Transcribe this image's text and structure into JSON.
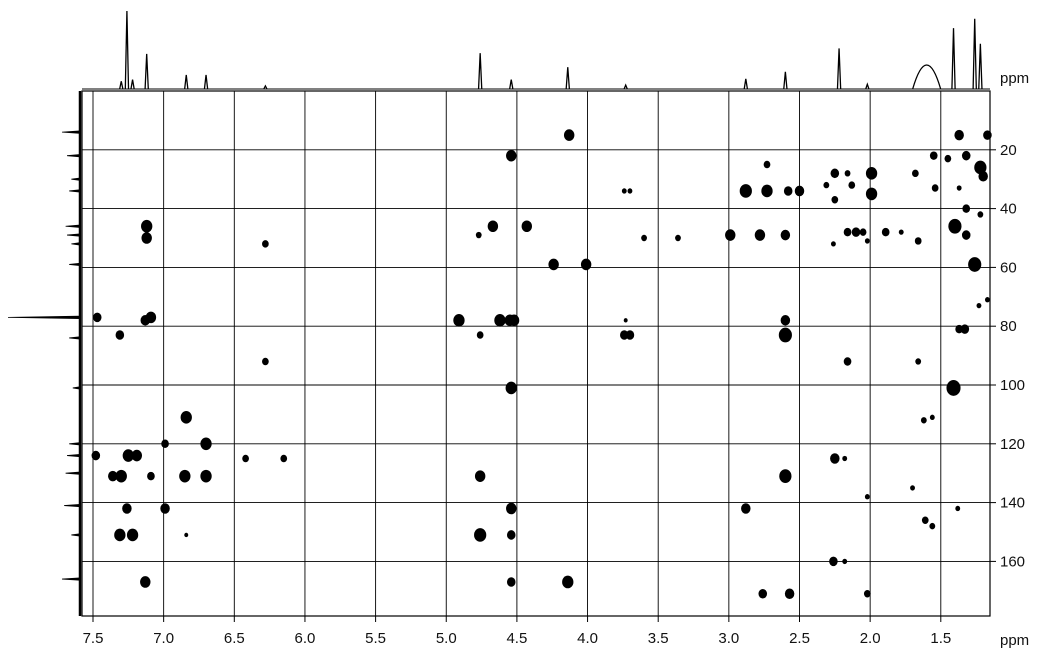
{
  "chart_data": {
    "type": "heatmap",
    "subtype": "2D NMR correlation (HSQC/HMBC) contour plot",
    "x_unit": "ppm",
    "y_unit": "ppm",
    "xlim": [
      7.55,
      1.15
    ],
    "ylim": [
      2,
      178
    ],
    "x_reversed": true,
    "grid": true,
    "x_ticks": [
      "7.5",
      "7.0",
      "6.5",
      "6.0",
      "5.5",
      "5.0",
      "4.5",
      "4.0",
      "3.5",
      "3.0",
      "2.5",
      "2.0",
      "1.5"
    ],
    "x_tick_values": [
      7.5,
      7.0,
      6.5,
      6.0,
      5.5,
      5.0,
      4.5,
      4.0,
      3.5,
      3.0,
      2.5,
      2.0,
      1.5
    ],
    "y_ticks": [
      "20",
      "40",
      "60",
      "80",
      "100",
      "120",
      "140",
      "160"
    ],
    "y_tick_values": [
      20,
      40,
      60,
      80,
      100,
      120,
      140,
      160
    ],
    "grid_x": [
      7.5,
      7.0,
      6.5,
      6.0,
      5.5,
      5.0,
      4.5,
      4.0,
      3.5,
      3.0,
      2.5,
      2.0,
      1.5
    ],
    "grid_y": [
      20,
      40,
      60,
      80,
      100,
      120,
      140,
      160
    ],
    "x_axis_label": "ppm",
    "y_axis_label": "ppm",
    "projection_1h": [
      {
        "x": 7.26,
        "h": 1.0
      },
      {
        "x": 7.22,
        "h": 0.12
      },
      {
        "x": 7.3,
        "h": 0.1
      },
      {
        "x": 7.12,
        "h": 0.45
      },
      {
        "x": 6.84,
        "h": 0.18
      },
      {
        "x": 6.7,
        "h": 0.18
      },
      {
        "x": 6.28,
        "h": 0.04
      },
      {
        "x": 4.76,
        "h": 0.46
      },
      {
        "x": 4.54,
        "h": 0.12
      },
      {
        "x": 4.14,
        "h": 0.28
      },
      {
        "x": 3.73,
        "h": 0.05
      },
      {
        "x": 2.88,
        "h": 0.13
      },
      {
        "x": 2.6,
        "h": 0.22
      },
      {
        "x": 2.22,
        "h": 0.52
      },
      {
        "x": 2.02,
        "h": 0.06
      },
      {
        "x": 1.6,
        "h": 0.28
      },
      {
        "x": 1.41,
        "h": 0.78
      },
      {
        "x": 1.26,
        "h": 0.9
      },
      {
        "x": 1.22,
        "h": 0.58
      }
    ],
    "projection_13c": [
      {
        "y": 14,
        "w": 0.25
      },
      {
        "y": 22,
        "w": 0.18
      },
      {
        "y": 30,
        "w": 0.12
      },
      {
        "y": 34,
        "w": 0.15
      },
      {
        "y": 46,
        "w": 0.2
      },
      {
        "y": 49,
        "w": 0.18
      },
      {
        "y": 52,
        "w": 0.12
      },
      {
        "y": 59,
        "w": 0.15
      },
      {
        "y": 77,
        "w": 1.0
      },
      {
        "y": 84,
        "w": 0.15
      },
      {
        "y": 101,
        "w": 0.1
      },
      {
        "y": 120,
        "w": 0.15
      },
      {
        "y": 124,
        "w": 0.18
      },
      {
        "y": 130,
        "w": 0.2
      },
      {
        "y": 141,
        "w": 0.22
      },
      {
        "y": 151,
        "w": 0.12
      },
      {
        "y": 166,
        "w": 0.25
      }
    ],
    "peaks": [
      {
        "x": 4.13,
        "y": 15,
        "s": 1.0
      },
      {
        "x": 1.37,
        "y": 15,
        "s": 0.9
      },
      {
        "x": 1.17,
        "y": 15,
        "s": 0.8
      },
      {
        "x": 4.54,
        "y": 22,
        "s": 1.0
      },
      {
        "x": 1.55,
        "y": 22,
        "s": 0.7
      },
      {
        "x": 1.45,
        "y": 23,
        "s": 0.6
      },
      {
        "x": 1.32,
        "y": 22,
        "s": 0.8
      },
      {
        "x": 1.22,
        "y": 26,
        "s": 1.2
      },
      {
        "x": 2.73,
        "y": 25,
        "s": 0.6
      },
      {
        "x": 2.25,
        "y": 28,
        "s": 0.8
      },
      {
        "x": 2.16,
        "y": 28,
        "s": 0.5
      },
      {
        "x": 1.99,
        "y": 28,
        "s": 1.1
      },
      {
        "x": 1.68,
        "y": 28,
        "s": 0.6
      },
      {
        "x": 1.2,
        "y": 29,
        "s": 0.9
      },
      {
        "x": 3.74,
        "y": 34,
        "s": 0.4
      },
      {
        "x": 3.7,
        "y": 34,
        "s": 0.4
      },
      {
        "x": 2.88,
        "y": 34,
        "s": 1.2
      },
      {
        "x": 2.73,
        "y": 34,
        "s": 1.1
      },
      {
        "x": 2.58,
        "y": 34,
        "s": 0.8
      },
      {
        "x": 2.5,
        "y": 34,
        "s": 0.9
      },
      {
        "x": 2.31,
        "y": 32,
        "s": 0.5
      },
      {
        "x": 2.25,
        "y": 37,
        "s": 0.6
      },
      {
        "x": 2.13,
        "y": 32,
        "s": 0.6
      },
      {
        "x": 1.99,
        "y": 35,
        "s": 1.1
      },
      {
        "x": 1.54,
        "y": 33,
        "s": 0.6
      },
      {
        "x": 1.37,
        "y": 33,
        "s": 0.4
      },
      {
        "x": 1.32,
        "y": 40,
        "s": 0.7
      },
      {
        "x": 1.22,
        "y": 42,
        "s": 0.5
      },
      {
        "x": 7.12,
        "y": 46,
        "s": 1.1
      },
      {
        "x": 7.12,
        "y": 50,
        "s": 1.0
      },
      {
        "x": 4.67,
        "y": 46,
        "s": 1.0
      },
      {
        "x": 4.43,
        "y": 46,
        "s": 1.0
      },
      {
        "x": 4.77,
        "y": 49,
        "s": 0.5
      },
      {
        "x": 3.6,
        "y": 50,
        "s": 0.5
      },
      {
        "x": 3.36,
        "y": 50,
        "s": 0.5
      },
      {
        "x": 2.99,
        "y": 49,
        "s": 1.0
      },
      {
        "x": 2.78,
        "y": 49,
        "s": 1.0
      },
      {
        "x": 2.6,
        "y": 49,
        "s": 0.9
      },
      {
        "x": 2.26,
        "y": 52,
        "s": 0.4
      },
      {
        "x": 2.16,
        "y": 48,
        "s": 0.7
      },
      {
        "x": 2.1,
        "y": 48,
        "s": 0.8
      },
      {
        "x": 2.05,
        "y": 48,
        "s": 0.6
      },
      {
        "x": 2.02,
        "y": 51,
        "s": 0.4
      },
      {
        "x": 1.89,
        "y": 48,
        "s": 0.7
      },
      {
        "x": 1.78,
        "y": 48,
        "s": 0.4
      },
      {
        "x": 1.66,
        "y": 51,
        "s": 0.6
      },
      {
        "x": 1.4,
        "y": 46,
        "s": 1.3
      },
      {
        "x": 1.32,
        "y": 49,
        "s": 0.8
      },
      {
        "x": 6.28,
        "y": 52,
        "s": 0.6
      },
      {
        "x": 4.24,
        "y": 59,
        "s": 1.0
      },
      {
        "x": 4.01,
        "y": 59,
        "s": 1.0
      },
      {
        "x": 1.26,
        "y": 59,
        "s": 1.3
      },
      {
        "x": 1.23,
        "y": 73,
        "s": 0.4
      },
      {
        "x": 1.17,
        "y": 71,
        "s": 0.4
      },
      {
        "x": 7.47,
        "y": 77,
        "s": 0.8
      },
      {
        "x": 7.13,
        "y": 78,
        "s": 0.9
      },
      {
        "x": 7.09,
        "y": 77,
        "s": 1.0
      },
      {
        "x": 4.91,
        "y": 78,
        "s": 1.1
      },
      {
        "x": 4.62,
        "y": 78,
        "s": 1.1
      },
      {
        "x": 4.55,
        "y": 78,
        "s": 1.0
      },
      {
        "x": 4.52,
        "y": 78,
        "s": 1.0
      },
      {
        "x": 3.73,
        "y": 78,
        "s": 0.3
      },
      {
        "x": 2.6,
        "y": 78,
        "s": 0.9
      },
      {
        "x": 1.37,
        "y": 81,
        "s": 0.7
      },
      {
        "x": 1.33,
        "y": 81,
        "s": 0.8
      },
      {
        "x": 7.31,
        "y": 83,
        "s": 0.8
      },
      {
        "x": 4.76,
        "y": 83,
        "s": 0.6
      },
      {
        "x": 3.74,
        "y": 83,
        "s": 0.8
      },
      {
        "x": 3.7,
        "y": 83,
        "s": 0.8
      },
      {
        "x": 2.6,
        "y": 83,
        "s": 1.3
      },
      {
        "x": 6.28,
        "y": 92,
        "s": 0.6
      },
      {
        "x": 2.16,
        "y": 92,
        "s": 0.7
      },
      {
        "x": 1.66,
        "y": 92,
        "s": 0.5
      },
      {
        "x": 4.54,
        "y": 101,
        "s": 1.1
      },
      {
        "x": 1.41,
        "y": 101,
        "s": 1.4
      },
      {
        "x": 6.84,
        "y": 111,
        "s": 1.1
      },
      {
        "x": 1.62,
        "y": 112,
        "s": 0.5
      },
      {
        "x": 1.56,
        "y": 111,
        "s": 0.4
      },
      {
        "x": 6.99,
        "y": 120,
        "s": 0.7
      },
      {
        "x": 6.7,
        "y": 120,
        "s": 1.1
      },
      {
        "x": 7.48,
        "y": 124,
        "s": 0.8
      },
      {
        "x": 7.25,
        "y": 124,
        "s": 1.1
      },
      {
        "x": 7.19,
        "y": 124,
        "s": 1.0
      },
      {
        "x": 6.42,
        "y": 125,
        "s": 0.6
      },
      {
        "x": 6.15,
        "y": 125,
        "s": 0.6
      },
      {
        "x": 2.25,
        "y": 125,
        "s": 0.9
      },
      {
        "x": 2.18,
        "y": 125,
        "s": 0.4
      },
      {
        "x": 7.36,
        "y": 131,
        "s": 0.9
      },
      {
        "x": 7.3,
        "y": 131,
        "s": 1.1
      },
      {
        "x": 7.09,
        "y": 131,
        "s": 0.7
      },
      {
        "x": 6.85,
        "y": 131,
        "s": 1.1
      },
      {
        "x": 6.7,
        "y": 131,
        "s": 1.1
      },
      {
        "x": 4.76,
        "y": 131,
        "s": 1.0
      },
      {
        "x": 2.6,
        "y": 131,
        "s": 1.2
      },
      {
        "x": 1.7,
        "y": 135,
        "s": 0.4
      },
      {
        "x": 2.02,
        "y": 138,
        "s": 0.4
      },
      {
        "x": 7.26,
        "y": 142,
        "s": 0.9
      },
      {
        "x": 6.99,
        "y": 142,
        "s": 0.9
      },
      {
        "x": 4.54,
        "y": 142,
        "s": 1.0
      },
      {
        "x": 2.88,
        "y": 142,
        "s": 0.9
      },
      {
        "x": 1.38,
        "y": 142,
        "s": 0.4
      },
      {
        "x": 1.61,
        "y": 146,
        "s": 0.6
      },
      {
        "x": 1.56,
        "y": 148,
        "s": 0.5
      },
      {
        "x": 7.31,
        "y": 151,
        "s": 1.1
      },
      {
        "x": 7.22,
        "y": 151,
        "s": 1.1
      },
      {
        "x": 6.84,
        "y": 151,
        "s": 0.3
      },
      {
        "x": 4.76,
        "y": 151,
        "s": 1.2
      },
      {
        "x": 4.54,
        "y": 151,
        "s": 0.8
      },
      {
        "x": 2.26,
        "y": 160,
        "s": 0.8
      },
      {
        "x": 2.18,
        "y": 160,
        "s": 0.4
      },
      {
        "x": 7.13,
        "y": 167,
        "s": 1.0
      },
      {
        "x": 4.54,
        "y": 167,
        "s": 0.8
      },
      {
        "x": 4.14,
        "y": 167,
        "s": 1.1
      },
      {
        "x": 2.76,
        "y": 171,
        "s": 0.8
      },
      {
        "x": 2.57,
        "y": 171,
        "s": 0.9
      },
      {
        "x": 2.02,
        "y": 171,
        "s": 0.6
      }
    ]
  }
}
